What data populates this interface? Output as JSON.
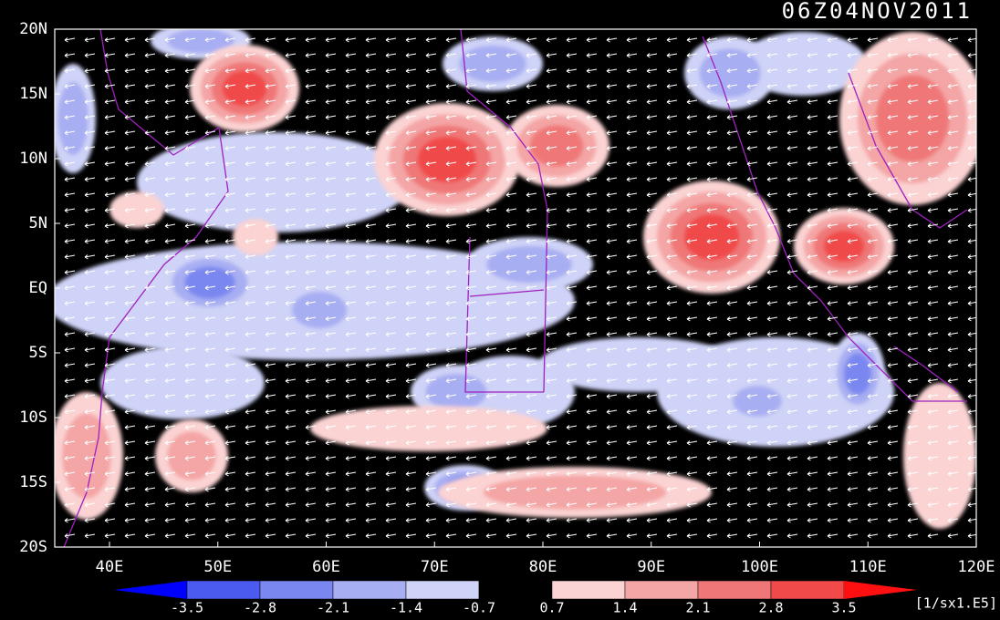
{
  "map": {
    "title": "06Z04NOV2011",
    "lat_labels": [
      "20N",
      "15N",
      "10N",
      "5N",
      "EQ",
      "5S",
      "10S",
      "15S",
      "20S"
    ],
    "lon_labels": [
      "40E",
      "50E",
      "60E",
      "70E",
      "80E",
      "90E",
      "100E",
      "110E",
      "120E"
    ]
  },
  "colorbar": {
    "levels": [
      -3.5,
      -2.8,
      -2.1,
      -1.4,
      -0.7,
      0.7,
      1.4,
      2.1,
      2.8,
      3.5
    ],
    "colors": [
      "#0000ff",
      "#4b5bf0",
      "#7a87f0",
      "#a8aef2",
      "#cfd3f7",
      "#000000",
      "#fbd3d3",
      "#f4a5a5",
      "#ef7777",
      "#f04a4a",
      "#ff1010"
    ],
    "unit": "[1/sx1.E5]"
  }
}
